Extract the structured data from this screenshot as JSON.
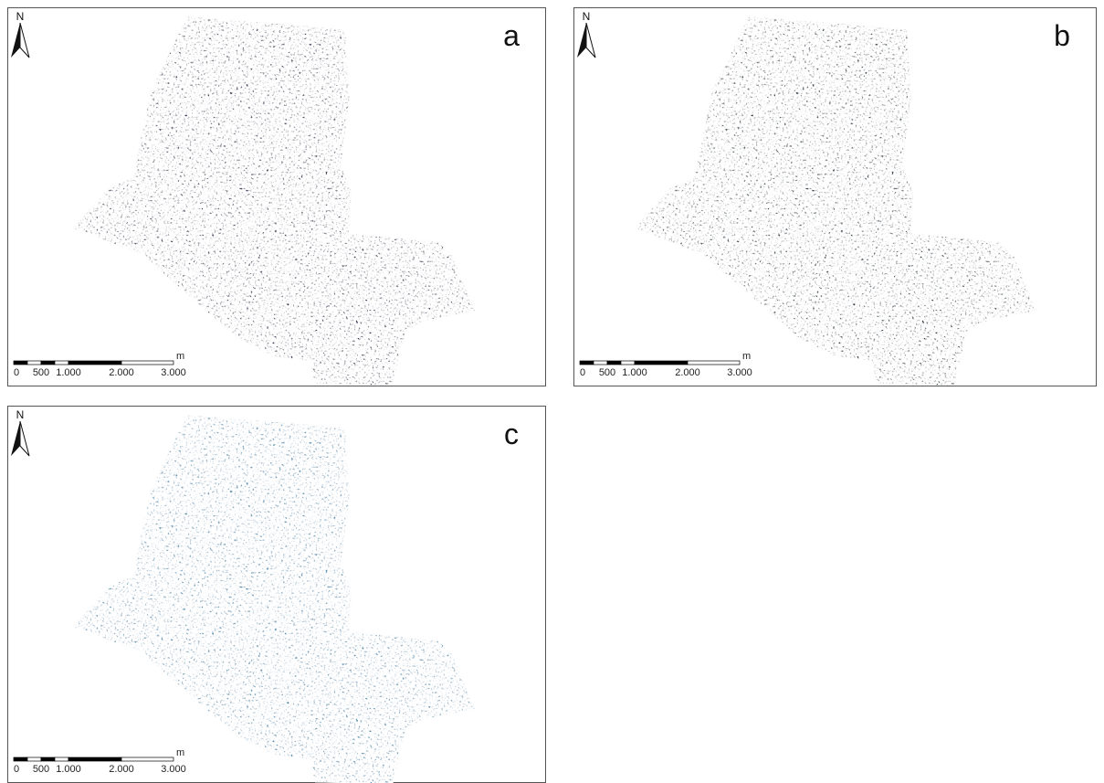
{
  "panels": [
    {
      "label": "a",
      "north": "N",
      "scale": {
        "unit": "m",
        "ticks": [
          "0",
          "500",
          "1.000",
          "2.000",
          "3.000"
        ]
      }
    },
    {
      "label": "b",
      "north": "N",
      "scale": {
        "unit": "m",
        "ticks": [
          "0",
          "500",
          "1.000",
          "2.000",
          "3.000"
        ]
      }
    },
    {
      "label": "c",
      "north": "N",
      "scale": {
        "unit": "m",
        "ticks": [
          "0",
          "500",
          "1.000",
          "2.000",
          "3.000"
        ]
      }
    }
  ]
}
